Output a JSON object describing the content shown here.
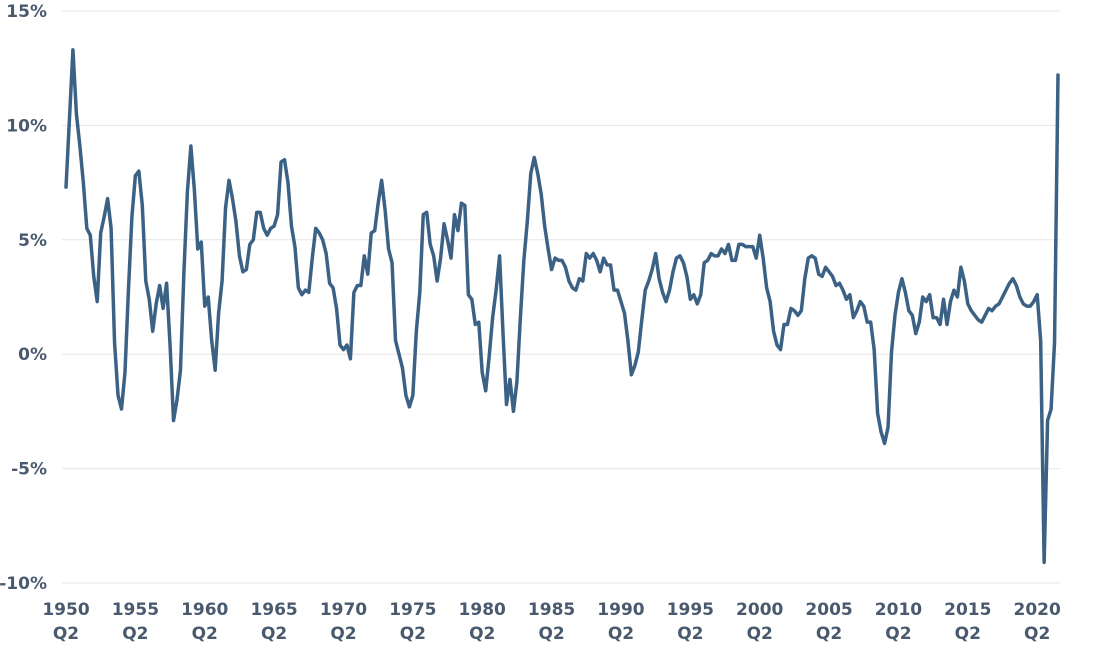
{
  "chart_data": {
    "type": "line",
    "title": "",
    "xlabel": "",
    "ylabel": "",
    "x_start": "1950 Q2",
    "x_end": "2021 Q2",
    "ylim": [
      -10,
      15
    ],
    "yticks": [
      -10,
      -5,
      0,
      5,
      10,
      15
    ],
    "ytick_labels": [
      "-10%",
      "-5%",
      "0%",
      "5%",
      "10%",
      "15%"
    ],
    "xticks": [
      {
        "year": "1950",
        "quarter": "Q2"
      },
      {
        "year": "1955",
        "quarter": "Q2"
      },
      {
        "year": "1960",
        "quarter": "Q2"
      },
      {
        "year": "1965",
        "quarter": "Q2"
      },
      {
        "year": "1970",
        "quarter": "Q2"
      },
      {
        "year": "1975",
        "quarter": "Q2"
      },
      {
        "year": "1980",
        "quarter": "Q2"
      },
      {
        "year": "1985",
        "quarter": "Q2"
      },
      {
        "year": "1990",
        "quarter": "Q2"
      },
      {
        "year": "1995",
        "quarter": "Q2"
      },
      {
        "year": "2000",
        "quarter": "Q2"
      },
      {
        "year": "2005",
        "quarter": "Q2"
      },
      {
        "year": "2010",
        "quarter": "Q2"
      },
      {
        "year": "2015",
        "quarter": "Q2"
      },
      {
        "year": "2020",
        "quarter": "Q2"
      }
    ],
    "grid": true,
    "colors": {
      "line": "#3b6185",
      "text": "#4a5a6e",
      "grid": "#e6e6e6"
    },
    "series": [
      {
        "values": [
          7.3,
          10.3,
          13.3,
          10.5,
          9.1,
          7.5,
          5.5,
          5.2,
          3.4,
          2.3,
          5.3,
          6.0,
          6.8,
          5.5,
          0.5,
          -1.8,
          -2.4,
          -0.8,
          2.8,
          6.0,
          7.8,
          8.0,
          6.5,
          3.2,
          2.4,
          1.0,
          2.2,
          3.0,
          2.0,
          3.1,
          0.4,
          -2.9,
          -2.0,
          -0.7,
          3.6,
          7.1,
          9.1,
          7.2,
          4.6,
          4.9,
          2.1,
          2.5,
          0.6,
          -0.7,
          1.8,
          3.2,
          6.4,
          7.6,
          6.8,
          5.8,
          4.3,
          3.6,
          3.7,
          4.8,
          5.0,
          6.2,
          6.2,
          5.5,
          5.2,
          5.5,
          5.6,
          6.1,
          8.4,
          8.5,
          7.5,
          5.6,
          4.7,
          2.9,
          2.6,
          2.8,
          2.7,
          4.2,
          5.5,
          5.3,
          5.0,
          4.4,
          3.1,
          2.9,
          2.0,
          0.4,
          0.2,
          0.4,
          -0.2,
          2.7,
          3.0,
          3.0,
          4.3,
          3.5,
          5.3,
          5.4,
          6.6,
          7.6,
          6.3,
          4.6,
          4.0,
          0.6,
          0.0,
          -0.6,
          -1.8,
          -2.3,
          -1.8,
          1.0,
          2.7,
          6.1,
          6.2,
          4.8,
          4.3,
          3.2,
          4.2,
          5.7,
          5.0,
          4.2,
          6.1,
          5.4,
          6.6,
          6.5,
          2.6,
          2.4,
          1.3,
          1.4,
          -0.8,
          -1.6,
          -0.1,
          1.6,
          2.8,
          4.3,
          0.9,
          -2.2,
          -1.1,
          -2.5,
          -1.2,
          1.6,
          4.1,
          5.8,
          7.9,
          8.6,
          7.9,
          7.0,
          5.6,
          4.6,
          3.7,
          4.2,
          4.1,
          4.1,
          3.8,
          3.2,
          2.9,
          2.8,
          3.3,
          3.2,
          4.4,
          4.2,
          4.4,
          4.1,
          3.6,
          4.2,
          3.9,
          3.9,
          2.8,
          2.8,
          2.3,
          1.8,
          0.6,
          -0.9,
          -0.5,
          0.1,
          1.5,
          2.8,
          3.2,
          3.7,
          4.4,
          3.3,
          2.7,
          2.3,
          2.8,
          3.6,
          4.2,
          4.3,
          4.0,
          3.4,
          2.4,
          2.6,
          2.2,
          2.6,
          4.0,
          4.1,
          4.4,
          4.3,
          4.3,
          4.6,
          4.4,
          4.8,
          4.1,
          4.1,
          4.8,
          4.8,
          4.7,
          4.7,
          4.7,
          4.2,
          5.2,
          4.2,
          2.9,
          2.3,
          1.0,
          0.4,
          0.2,
          1.3,
          1.3,
          2.0,
          1.9,
          1.7,
          1.9,
          3.3,
          4.2,
          4.3,
          4.2,
          3.5,
          3.4,
          3.8,
          3.6,
          3.4,
          3.0,
          3.1,
          2.8,
          2.4,
          2.6,
          1.6,
          1.9,
          2.3,
          2.1,
          1.4,
          1.4,
          0.2,
          -2.6,
          -3.4,
          -3.9,
          -3.2,
          0.1,
          1.7,
          2.7,
          3.3,
          2.7,
          1.9,
          1.7,
          0.9,
          1.4,
          2.5,
          2.3,
          2.6,
          1.6,
          1.6,
          1.3,
          2.4,
          1.3,
          2.3,
          2.8,
          2.5,
          3.8,
          3.2,
          2.2,
          1.9,
          1.7,
          1.5,
          1.4,
          1.7,
          2.0,
          1.9,
          2.1,
          2.2,
          2.5,
          2.8,
          3.1,
          3.3,
          3.0,
          2.5,
          2.2,
          2.1,
          2.1,
          2.3,
          2.6,
          0.6,
          -9.1,
          -2.9,
          -2.4,
          0.5,
          12.2
        ]
      }
    ]
  }
}
